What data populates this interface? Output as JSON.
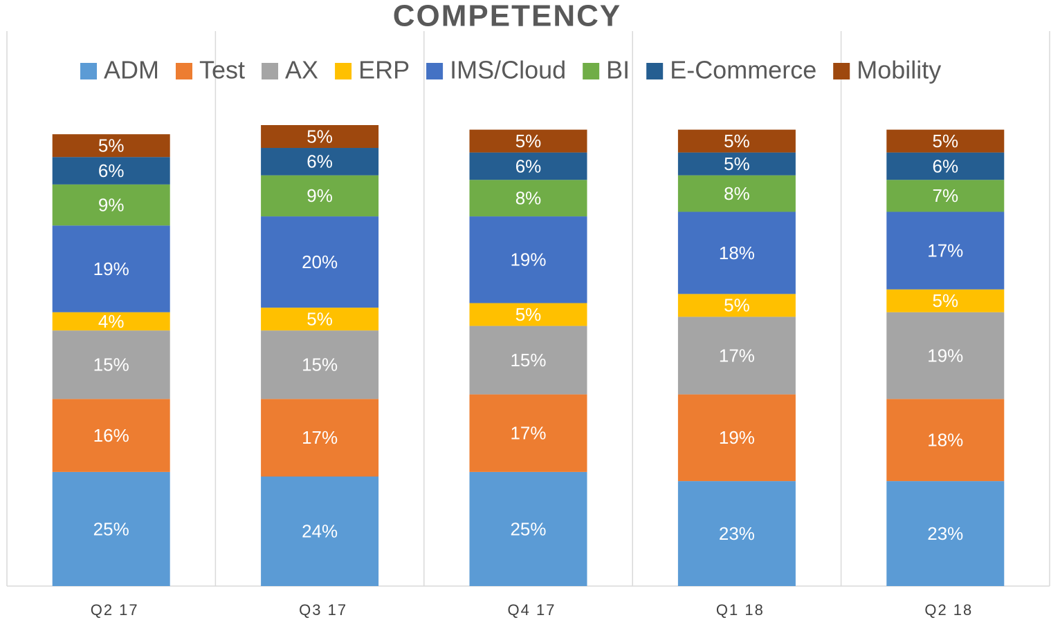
{
  "chart_data": {
    "type": "stacked_bar",
    "title": "COMPETENCY",
    "categories": [
      "Q2 17",
      "Q3 17",
      "Q4 17",
      "Q1 18",
      "Q2 18"
    ],
    "series": [
      {
        "name": "ADM",
        "color": "#5b9bd5",
        "values": [
          25,
          24,
          25,
          23,
          23
        ],
        "value_labels": [
          "25%",
          "24%",
          "25%",
          "23%",
          "23%"
        ]
      },
      {
        "name": "Test",
        "color": "#ed7d31",
        "values": [
          16,
          17,
          17,
          19,
          18
        ],
        "value_labels": [
          "16%",
          "17%",
          "17%",
          "19%",
          "18%"
        ]
      },
      {
        "name": "AX",
        "color": "#a5a5a5",
        "values": [
          15,
          15,
          15,
          17,
          19
        ],
        "value_labels": [
          "15%",
          "15%",
          "15%",
          "17%",
          "19%"
        ]
      },
      {
        "name": "ERP",
        "color": "#ffc000",
        "values": [
          4,
          5,
          5,
          5,
          5
        ],
        "value_labels": [
          "4%",
          "5%",
          "5%",
          "5%",
          "5%"
        ]
      },
      {
        "name": "IMS/Cloud",
        "color": "#4472c4",
        "values": [
          19,
          20,
          19,
          18,
          17
        ],
        "value_labels": [
          "19%",
          "20%",
          "19%",
          "18%",
          "17%"
        ]
      },
      {
        "name": "BI",
        "color": "#70ad47",
        "values": [
          9,
          9,
          8,
          8,
          7
        ],
        "value_labels": [
          "9%",
          "9%",
          "8%",
          "8%",
          "7%"
        ]
      },
      {
        "name": "E-Commerce",
        "color": "#255e91",
        "values": [
          6,
          6,
          6,
          5,
          6
        ],
        "value_labels": [
          "6%",
          "6%",
          "6%",
          "5%",
          "6%"
        ]
      },
      {
        "name": "Mobility",
        "color": "#9e480e",
        "values": [
          5,
          5,
          5,
          5,
          5
        ],
        "value_labels": [
          "5%",
          "5%",
          "5%",
          "5%",
          "5%"
        ]
      }
    ],
    "legend": "top"
  }
}
